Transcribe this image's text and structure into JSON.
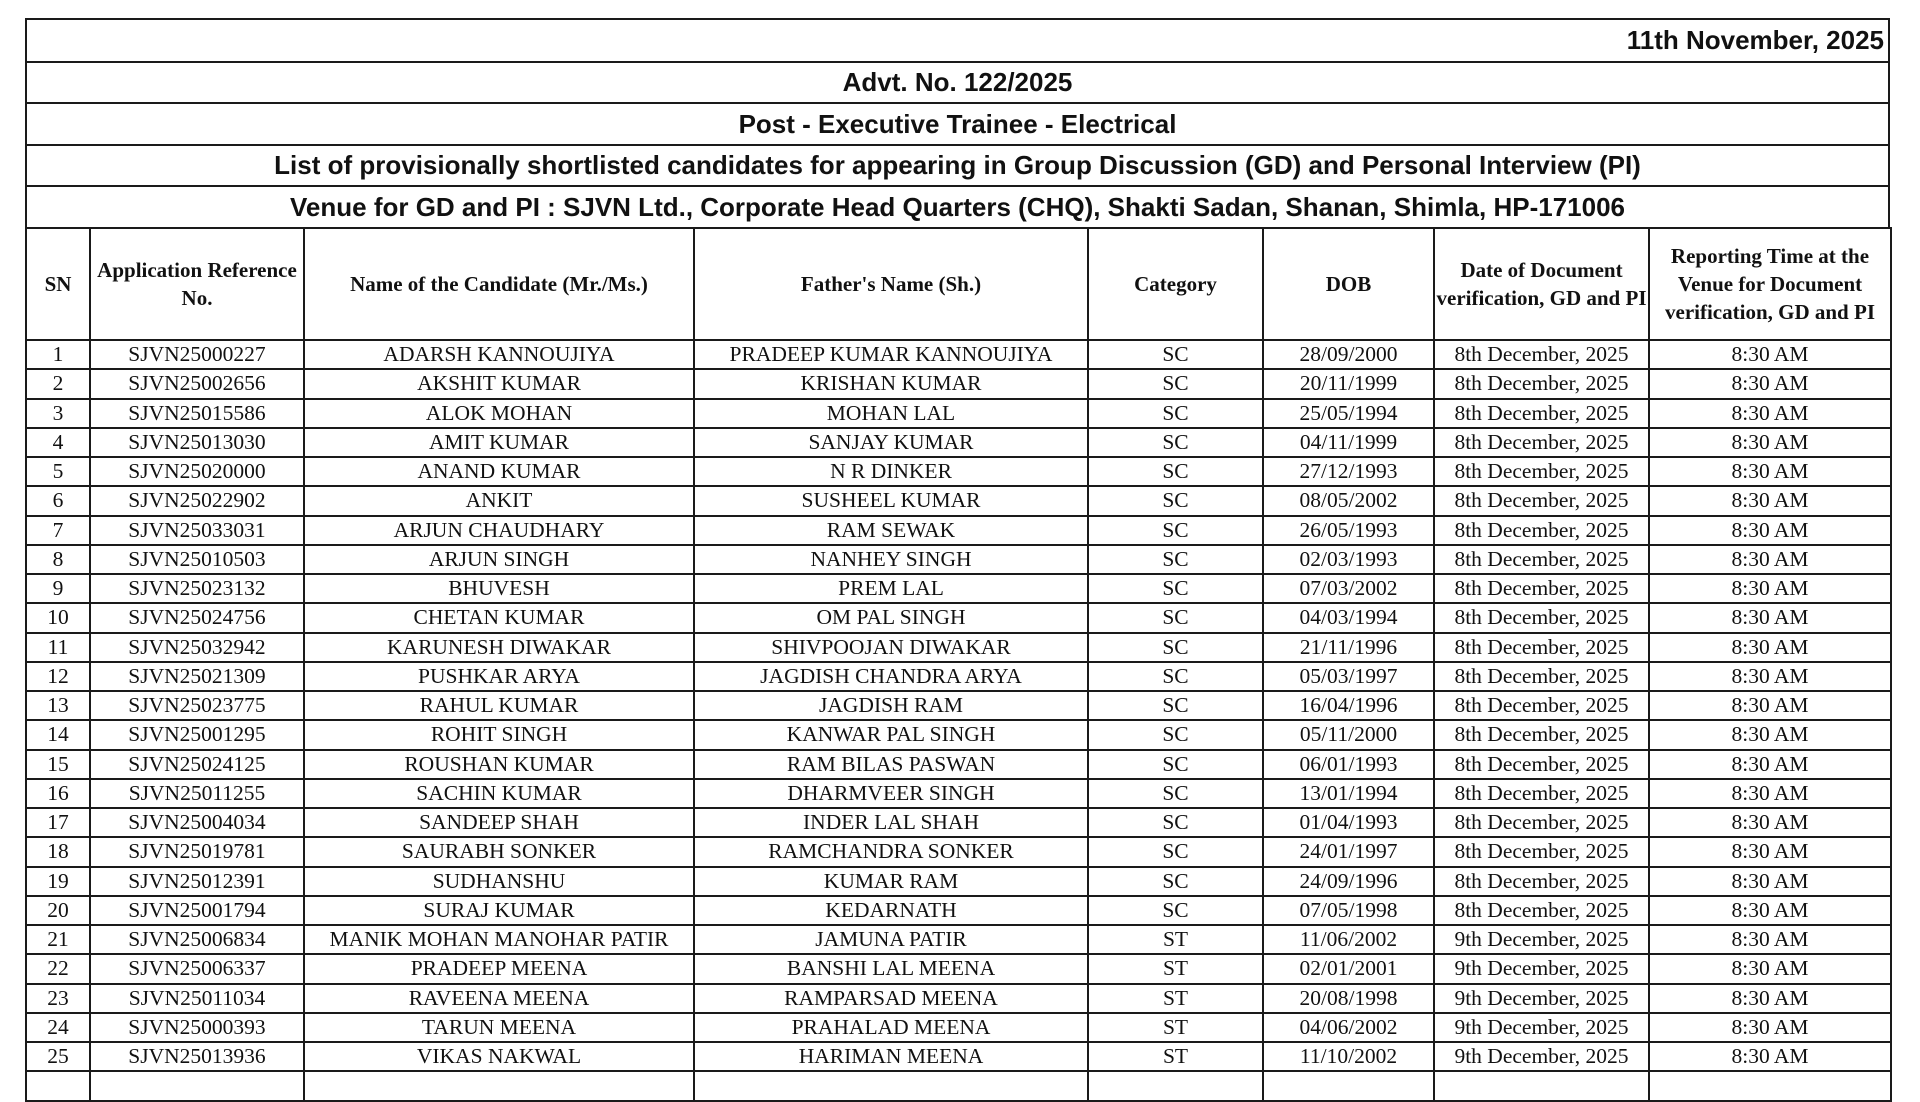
{
  "header": {
    "date": "11th November, 2025",
    "advt": "Advt. No. 122/2025",
    "post": "Post - Executive Trainee - Electrical",
    "list_title": "List of provisionally shortlisted candidates for appearing in Group Discussion (GD) and Personal Interview (PI)",
    "venue": "Venue for GD and PI : SJVN Ltd., Corporate Head Quarters (CHQ), Shakti Sadan, Shanan, Shimla, HP-171006"
  },
  "table": {
    "columns": [
      "SN",
      "Application Reference  No.",
      "Name of the Candidate (Mr./Ms.)",
      "Father's Name (Sh.)",
      "Category",
      "DOB",
      "Date of Document verification, GD and PI",
      "Reporting Time at the Venue for Document verification, GD and PI"
    ],
    "rows": [
      [
        "1",
        "SJVN25000227",
        "ADARSH KANNOUJIYA",
        "PRADEEP KUMAR KANNOUJIYA",
        "SC",
        "28/09/2000",
        "8th December, 2025",
        "8:30 AM"
      ],
      [
        "2",
        "SJVN25002656",
        "AKSHIT KUMAR",
        "KRISHAN KUMAR",
        "SC",
        "20/11/1999",
        "8th December, 2025",
        "8:30 AM"
      ],
      [
        "3",
        "SJVN25015586",
        "ALOK MOHAN",
        "MOHAN LAL",
        "SC",
        "25/05/1994",
        "8th December, 2025",
        "8:30 AM"
      ],
      [
        "4",
        "SJVN25013030",
        "AMIT KUMAR",
        "SANJAY KUMAR",
        "SC",
        "04/11/1999",
        "8th December, 2025",
        "8:30 AM"
      ],
      [
        "5",
        "SJVN25020000",
        "ANAND KUMAR",
        "N R DINKER",
        "SC",
        "27/12/1993",
        "8th December, 2025",
        "8:30 AM"
      ],
      [
        "6",
        "SJVN25022902",
        "ANKIT",
        "SUSHEEL KUMAR",
        "SC",
        "08/05/2002",
        "8th December, 2025",
        "8:30 AM"
      ],
      [
        "7",
        "SJVN25033031",
        "ARJUN CHAUDHARY",
        "RAM SEWAK",
        "SC",
        "26/05/1993",
        "8th December, 2025",
        "8:30 AM"
      ],
      [
        "8",
        "SJVN25010503",
        "ARJUN SINGH",
        "NANHEY SINGH",
        "SC",
        "02/03/1993",
        "8th December, 2025",
        "8:30 AM"
      ],
      [
        "9",
        "SJVN25023132",
        "BHUVESH",
        "PREM LAL",
        "SC",
        "07/03/2002",
        "8th December, 2025",
        "8:30 AM"
      ],
      [
        "10",
        "SJVN25024756",
        "CHETAN KUMAR",
        "OM PAL SINGH",
        "SC",
        "04/03/1994",
        "8th December, 2025",
        "8:30 AM"
      ],
      [
        "11",
        "SJVN25032942",
        "KARUNESH DIWAKAR",
        "SHIVPOOJAN DIWAKAR",
        "SC",
        "21/11/1996",
        "8th December, 2025",
        "8:30 AM"
      ],
      [
        "12",
        "SJVN25021309",
        "PUSHKAR ARYA",
        "JAGDISH CHANDRA ARYA",
        "SC",
        "05/03/1997",
        "8th December, 2025",
        "8:30 AM"
      ],
      [
        "13",
        "SJVN25023775",
        "RAHUL KUMAR",
        "JAGDISH RAM",
        "SC",
        "16/04/1996",
        "8th December, 2025",
        "8:30 AM"
      ],
      [
        "14",
        "SJVN25001295",
        "ROHIT SINGH",
        "KANWAR PAL SINGH",
        "SC",
        "05/11/2000",
        "8th December, 2025",
        "8:30 AM"
      ],
      [
        "15",
        "SJVN25024125",
        "ROUSHAN KUMAR",
        "RAM BILAS PASWAN",
        "SC",
        "06/01/1993",
        "8th December, 2025",
        "8:30 AM"
      ],
      [
        "16",
        "SJVN25011255",
        "SACHIN KUMAR",
        "DHARMVEER SINGH",
        "SC",
        "13/01/1994",
        "8th December, 2025",
        "8:30 AM"
      ],
      [
        "17",
        "SJVN25004034",
        "SANDEEP SHAH",
        "INDER LAL SHAH",
        "SC",
        "01/04/1993",
        "8th December, 2025",
        "8:30 AM"
      ],
      [
        "18",
        "SJVN25019781",
        "SAURABH SONKER",
        "RAMCHANDRA SONKER",
        "SC",
        "24/01/1997",
        "8th December, 2025",
        "8:30 AM"
      ],
      [
        "19",
        "SJVN25012391",
        "SUDHANSHU",
        "KUMAR RAM",
        "SC",
        "24/09/1996",
        "8th December, 2025",
        "8:30 AM"
      ],
      [
        "20",
        "SJVN25001794",
        "SURAJ KUMAR",
        "KEDARNATH",
        "SC",
        "07/05/1998",
        "8th December, 2025",
        "8:30 AM"
      ],
      [
        "21",
        "SJVN25006834",
        "MANIK MOHAN MANOHAR PATIR",
        "JAMUNA PATIR",
        "ST",
        "11/06/2002",
        "9th December, 2025",
        "8:30 AM"
      ],
      [
        "22",
        "SJVN25006337",
        "PRADEEP MEENA",
        "BANSHI LAL MEENA",
        "ST",
        "02/01/2001",
        "9th December, 2025",
        "8:30 AM"
      ],
      [
        "23",
        "SJVN25011034",
        "RAVEENA MEENA",
        "RAMPARSAD MEENA",
        "ST",
        "20/08/1998",
        "9th December, 2025",
        "8:30 AM"
      ],
      [
        "24",
        "SJVN25000393",
        "TARUN MEENA",
        "PRAHALAD MEENA",
        "ST",
        "04/06/2002",
        "9th December, 2025",
        "8:30 AM"
      ],
      [
        "25",
        "SJVN25013936",
        "VIKAS NAKWAL",
        "HARIMAN MEENA",
        "ST",
        "11/10/2002",
        "9th December, 2025",
        "8:30 AM"
      ]
    ]
  }
}
